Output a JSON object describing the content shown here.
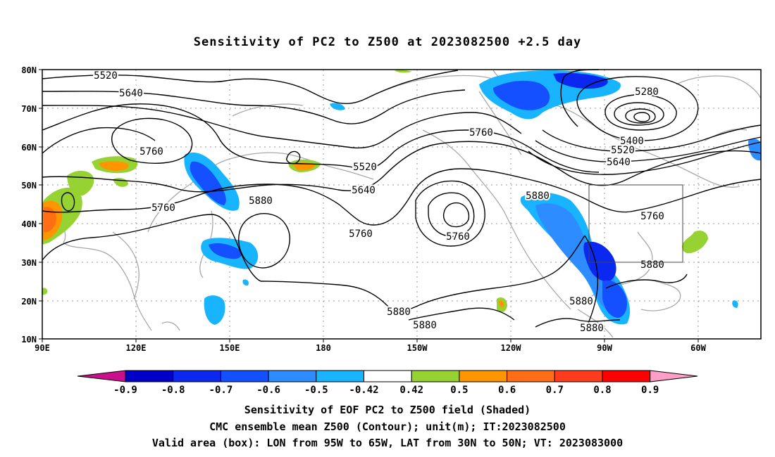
{
  "title": "Sensitivity of PC2 to Z500 at 2023082500 +2.5 day",
  "lat_labels": [
    "80N",
    "70N",
    "60N",
    "50N",
    "40N",
    "30N",
    "20N",
    "10N"
  ],
  "lon_labels": [
    "90E",
    "120E",
    "150E",
    "180",
    "150W",
    "120W",
    "90W",
    "60W"
  ],
  "contour_labels": [
    "5520",
    "5640",
    "5760",
    "5280",
    "5400",
    "5520",
    "5640",
    "5760",
    "5520",
    "5640",
    "5760",
    "5760",
    "5880",
    "5760",
    "5880",
    "5760",
    "5880",
    "5880",
    "5880",
    "5880",
    "5880"
  ],
  "colorbar": {
    "labels": [
      "-0.9",
      "-0.8",
      "-0.7",
      "-0.6",
      "-0.5",
      "-0.42",
      "0.42",
      "0.5",
      "0.6",
      "0.7",
      "0.8",
      "0.9"
    ],
    "colors": [
      "#c8108c",
      "#0000c8",
      "#0a28f0",
      "#1450ff",
      "#2d8cff",
      "#19b4ff",
      "#ffffff",
      "#96d232",
      "#ff9600",
      "#ff6e14",
      "#ff3c1e",
      "#ff0000",
      "#ff9ec8"
    ]
  },
  "captions": [
    "Sensitivity of EOF PC2 to Z500 field (Shaded)",
    "CMC ensemble mean Z500 (Contour); unit(m); IT:2023082500",
    "Valid area (box): LON from 95W to 65W, LAT from 30N to 50N; VT: 2023083000"
  ]
}
